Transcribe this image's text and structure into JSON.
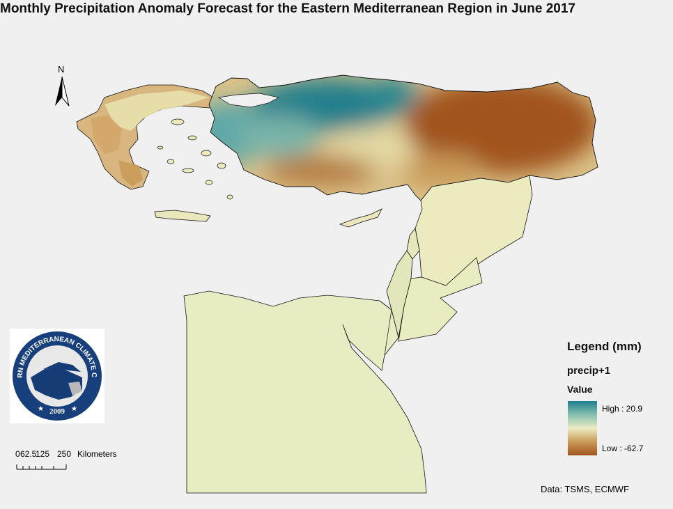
{
  "title": "Monthly Precipitation Anomaly Forecast for the Eastern Mediterranean Region in June 2017",
  "north_arrow": {
    "label": "N"
  },
  "logo": {
    "ring_text": "EASTERN MEDITERRANEAN CLIMATE CENTRE",
    "year": "2009"
  },
  "scalebar": {
    "ticks": [
      "0",
      "62.5",
      "125",
      "250"
    ],
    "unit": "Kilometers"
  },
  "legend": {
    "title": "Legend (mm)",
    "layer": "precip+1",
    "field": "Value",
    "high": "High : 20.9",
    "low": "Low : -62.7",
    "colors": {
      "high": "#1f7f8d",
      "mid": "#eeecc4",
      "low": "#a1541f"
    }
  },
  "source": "Data:  TSMS, ECMWF"
}
